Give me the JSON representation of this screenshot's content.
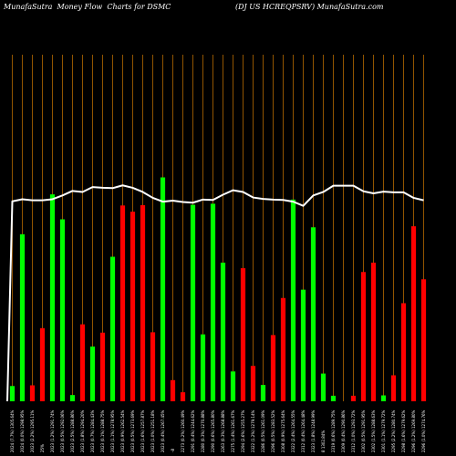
{
  "header": {
    "title_left": "MunafaSutra  Money Flow  Charts for DSMC",
    "title_right": "(DJ US HCREQPSRV) MunafaSutra.com"
  },
  "colors": {
    "background": "#000000",
    "up": "#00ff00",
    "down": "#ff0000",
    "grid": "#b86b00",
    "line": "#ffffff"
  },
  "chart_data": {
    "type": "bar",
    "title": "MunafaSutra  Money Flow  Charts for DSMC",
    "xlabel": "",
    "ylabel": "",
    "ylim": [
      0,
      100
    ],
    "grid": true,
    "x_tick_labels": [
      "2024 (7.7%) 1305.64%",
      "2024 (0.0%) 1298.95%",
      "2023 (2.2%) 1295.11%",
      "25%",
      "2023 (1.2%) 1291.74%",
      "2023 (0.5%) 1292.06%",
      "2023 (2.5%) 1288.86%",
      "2023 (1.8%) 1294.20%",
      "2023 (0.7%) 1284.43%",
      "2023 (0.1%) 1288.75%",
      "2023 (1.1%) 1278.95%",
      "2023 (0.9%) 1262.54%",
      "2023 (0.5%) 1273.69%",
      "2023 (1.6%) 1257.87%",
      "2023 (1.0%) 1251.18%",
      "2023 (0.4%) 1267.45%",
      "-8",
      "2273 (0.2%) 1260.49%",
      "2291 (0.4%) 1244.62%",
      "2280 (0.3%) 1270.88%",
      "2290 (0.6%) 1265.80%",
      "2263 (0.3%) 1268.88%",
      "2275 (1.4%) 1261.67%",
      "2294 (2.6%) 1255.27%",
      "2322 (1.2%) 1279.14%",
      "2286 (0.5%) 1261.09%",
      "2296 (0.5%) 1283.52%",
      "2308 (0.9%) 1275.64%",
      "2322 (2.4%) 1264.55%",
      "2312 (0.4%) 1264.48%",
      "2323 (1.8%) 1248.99%",
      "8 1302.84%",
      "2319 (0.6%) 1289.75%",
      "2309 (0.4%) 1290.86%",
      "2312 (1.0%) 1293.72%",
      "2302 (0.5%) 1291.95%",
      "2302 (1.5%) 1288.63%",
      "2301 (1.1%) 1279.72%",
      "2295 (2.2%) 1280.74%",
      "2298 (1.6%) 1279.62%",
      "2296 (1.2%) 1269.80%",
      "2296 (1.0%) 1274.76%"
    ],
    "values": [
      4.4,
      48.2,
      4.6,
      21.1,
      59.7,
      52.5,
      1.8,
      22.2,
      15.8,
      19.8,
      41.7,
      56.5,
      54.7,
      56.6,
      19.9,
      64.6,
      6.1,
      2.6,
      56.7,
      19.3,
      57.0,
      40.0,
      8.6,
      38.4,
      10.2,
      4.7,
      19.1,
      29.8,
      58.2,
      32.2,
      50.2,
      8.0,
      1.6,
      0.0,
      1.6,
      37.3,
      40.0,
      1.7,
      7.5,
      28.3,
      50.5,
      35.2
    ],
    "colors": [
      "up",
      "up",
      "down",
      "down",
      "up",
      "up",
      "up",
      "down",
      "up",
      "down",
      "up",
      "down",
      "down",
      "down",
      "down",
      "up",
      "down",
      "down",
      "up",
      "up",
      "up",
      "up",
      "up",
      "down",
      "down",
      "up",
      "down",
      "down",
      "up",
      "up",
      "up",
      "up",
      "up",
      "up",
      "down",
      "down",
      "down",
      "up",
      "down",
      "down",
      "down",
      "down"
    ],
    "line_values": [
      57.7,
      58.3,
      58.0,
      58.0,
      58.3,
      59.4,
      60.7,
      60.4,
      61.8,
      61.6,
      61.5,
      62.3,
      61.6,
      60.4,
      58.7,
      57.6,
      57.9,
      57.5,
      57.3,
      58.2,
      58.1,
      59.6,
      60.9,
      60.4,
      58.8,
      58.4,
      58.2,
      58.1,
      57.6,
      56.4,
      59.4,
      60.4,
      62.2,
      62.2,
      62.2,
      60.6,
      60.0,
      60.5,
      60.3,
      60.3,
      58.7,
      58.0
    ]
  }
}
